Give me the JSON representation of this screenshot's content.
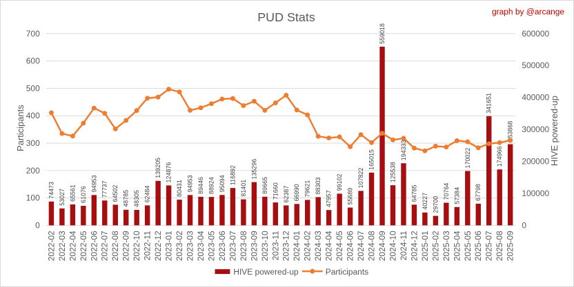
{
  "chart_data": {
    "type": "bar+line",
    "title": "PUD Stats",
    "credit": "graph by @arcange",
    "categories": [
      "2022-02",
      "2022-03",
      "2022-04",
      "2022-05",
      "2022-06",
      "2022-07",
      "2022-08",
      "2022-09",
      "2022-10",
      "2022-11",
      "2022-12",
      "2023-01",
      "2023-02",
      "2023-03",
      "2023-04",
      "2023-05",
      "2023-06",
      "2023-07",
      "2023-08",
      "2023-09",
      "2023-10",
      "2023-11",
      "2023-12",
      "2024-01",
      "2024-02",
      "2024-03",
      "2024-04",
      "2024-05",
      "2024-06",
      "2024-07",
      "2024-08",
      "2024-09",
      "2024-10",
      "2024-11",
      "2024-12",
      "2025-01",
      "2025-02",
      "2025-03",
      "2025-04",
      "2025-05",
      "2025-06",
      "2025-07",
      "2025-08",
      "2025-09"
    ],
    "series": [
      {
        "name": "HIVE powered-up",
        "type": "bar",
        "axis": "right",
        "color": "#a50f0f",
        "values": [
          74473,
          53027,
          65561,
          61076,
          94953,
          77737,
          64502,
          48785,
          48305,
          62484,
          139205,
          124876,
          80431,
          94953,
          89446,
          88924,
          95094,
          116892,
          81401,
          135296,
          89665,
          71660,
          62387,
          66990,
          79621,
          88303,
          47957,
          99102,
          55689,
          107822,
          165015,
          559018,
          125538,
          194333,
          64785,
          40227,
          29700,
          70764,
          57384,
          170022,
          67798,
          341651,
          174966,
          253868
        ]
      },
      {
        "name": "Participants",
        "type": "line",
        "axis": "left",
        "color": "#ed7d31",
        "values": [
          411,
          335,
          326,
          373,
          428,
          409,
          352,
          383,
          419,
          464,
          468,
          497,
          487,
          420,
          429,
          444,
          461,
          463,
          437,
          453,
          420,
          447,
          475,
          421,
          403,
          325,
          319,
          323,
          287,
          331,
          302,
          336,
          312,
          318,
          282,
          272,
          289,
          286,
          309,
          305,
          283,
          298,
          302,
          310
        ]
      }
    ],
    "left_axis": {
      "label": "Participants",
      "min": 0,
      "max": 700,
      "ticks": [
        0,
        100,
        200,
        300,
        400,
        500,
        600,
        700
      ]
    },
    "right_axis": {
      "label": "HIVE powered-up",
      "min": 0,
      "max": 600000,
      "ticks": [
        0,
        100000,
        200000,
        300000,
        400000,
        500000,
        600000
      ]
    },
    "grid": true,
    "legend": "bottom"
  }
}
